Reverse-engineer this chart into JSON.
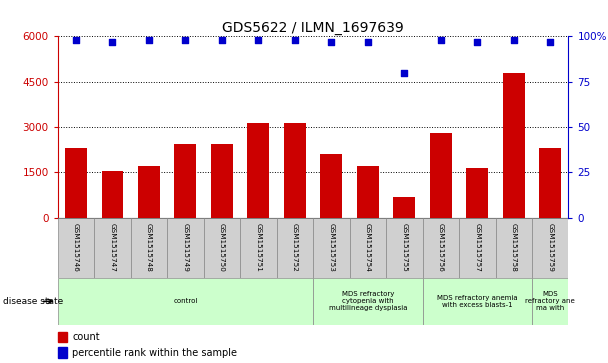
{
  "title": "GDS5622 / ILMN_1697639",
  "samples": [
    "GSM1515746",
    "GSM1515747",
    "GSM1515748",
    "GSM1515749",
    "GSM1515750",
    "GSM1515751",
    "GSM1515752",
    "GSM1515753",
    "GSM1515754",
    "GSM1515755",
    "GSM1515756",
    "GSM1515757",
    "GSM1515758",
    "GSM1515759"
  ],
  "counts": [
    2300,
    1550,
    1700,
    2450,
    2450,
    3150,
    3150,
    2100,
    1700,
    700,
    2800,
    1650,
    4800,
    2300
  ],
  "percentiles": [
    98,
    97,
    98,
    98,
    98,
    98,
    98,
    97,
    97,
    80,
    98,
    97,
    98,
    97
  ],
  "ylim_left": [
    0,
    6000
  ],
  "ylim_right": [
    0,
    100
  ],
  "yticks_left": [
    0,
    1500,
    3000,
    4500,
    6000
  ],
  "yticks_right": [
    0,
    25,
    50,
    75,
    100
  ],
  "bar_color": "#cc0000",
  "dot_color": "#0000cc",
  "bar_width": 0.6,
  "bg_color": "#ffffff",
  "sample_box_color": "#d0d0d0",
  "disease_box_color": "#ccffcc",
  "disease_states": [
    {
      "label": "control",
      "start": 0,
      "end": 7
    },
    {
      "label": "MDS refractory\ncytopenia with\nmultilineage dysplasia",
      "start": 7,
      "end": 10
    },
    {
      "label": "MDS refractory anemia\nwith excess blasts-1",
      "start": 10,
      "end": 13
    },
    {
      "label": "MDS\nrefractory ane\nma with",
      "start": 13,
      "end": 14
    }
  ],
  "legend_count_label": "count",
  "legend_pct_label": "percentile rank within the sample",
  "disease_state_label": "disease state"
}
